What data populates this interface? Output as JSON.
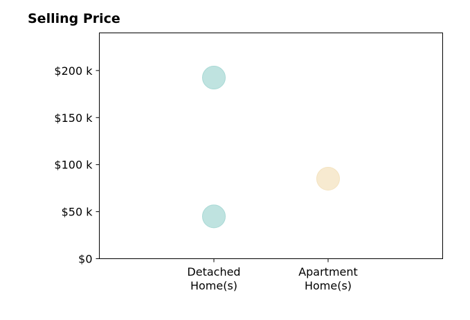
{
  "chart_data": {
    "type": "scatter",
    "title": "Selling Price",
    "xlabel": "",
    "ylabel": "",
    "categories": [
      "Detached\nHome(s)",
      "Apartment\nHome(s)"
    ],
    "ylim": [
      0,
      240000
    ],
    "yticks": [
      0,
      50000,
      100000,
      150000,
      200000
    ],
    "ytick_labels": [
      "$0",
      "$50 k",
      "$100 k",
      "$150 k",
      "$200 k"
    ],
    "grid": false,
    "points": [
      {
        "category": 0,
        "value": 192500,
        "color": "#a9d9d5"
      },
      {
        "category": 0,
        "value": 45000,
        "color": "#a9d9d5"
      },
      {
        "category": 1,
        "value": 85000,
        "color": "#f4e3c0"
      }
    ]
  }
}
